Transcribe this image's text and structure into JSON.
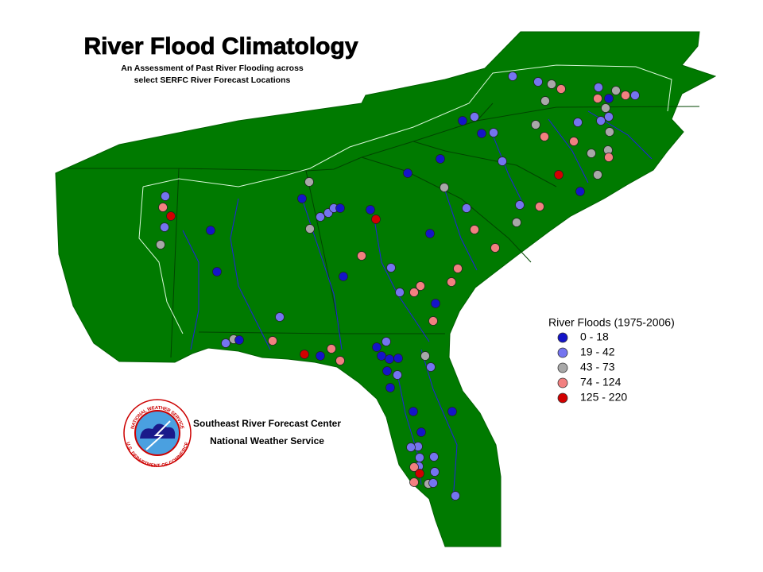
{
  "header": {
    "title": "River Flood Climatology",
    "subtitle_lines": [
      "An Assessment of Past River Flooding across",
      "select SERFC River Forecast Locations"
    ]
  },
  "legend": {
    "title": "River Floods (1975-2006)",
    "items": [
      {
        "label": "0 - 18",
        "color": "#1414c8"
      },
      {
        "label": "19 - 42",
        "color": "#7474f0"
      },
      {
        "label": "43 - 73",
        "color": "#a8a8a8"
      },
      {
        "label": "74 - 124",
        "color": "#f28080"
      },
      {
        "label": "125 - 220",
        "color": "#d20000"
      }
    ]
  },
  "footer": {
    "lines": [
      "Southeast River Forecast Center",
      "National Weather Service"
    ]
  },
  "logo": {
    "top": "NATIONAL WEATHER SERVICE",
    "bottom": "U.S. DEPARTMENT OF COMMERCE"
  }
}
